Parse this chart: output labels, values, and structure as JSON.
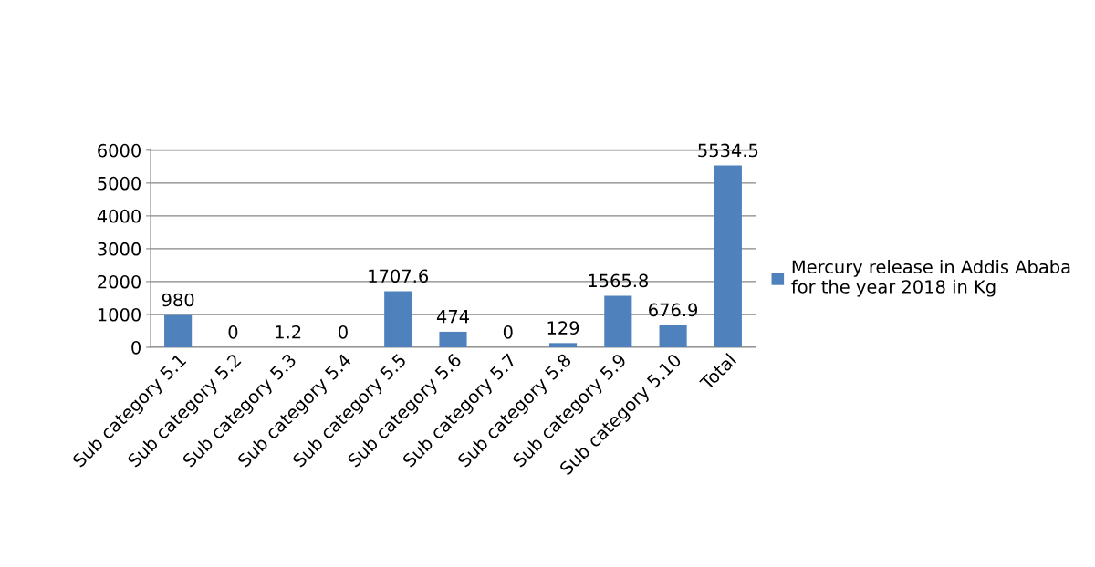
{
  "chart_data": {
    "type": "bar",
    "categories": [
      "Sub category 5.1",
      "Sub category 5.2",
      "Sub category 5.3",
      "Sub category 5.4",
      "Sub category 5.5",
      "Sub category 5.6",
      "Sub category 5.7",
      "Sub category 5.8",
      "Sub category 5.9",
      "Sub category 5.10",
      "Total"
    ],
    "series": [
      {
        "name": "Mercury release in Addis Ababa\nfor the year 2018 in Kg",
        "color": "#4f81bd",
        "values": [
          980,
          0,
          1.2,
          0,
          1707.6,
          474,
          0,
          129,
          1565.8,
          676.9,
          5534.5
        ]
      }
    ],
    "ylim": [
      0,
      6000
    ],
    "yticks": [
      0,
      1000,
      2000,
      3000,
      4000,
      5000,
      6000
    ],
    "grid": "y",
    "legend": "right",
    "data_labels": true
  }
}
